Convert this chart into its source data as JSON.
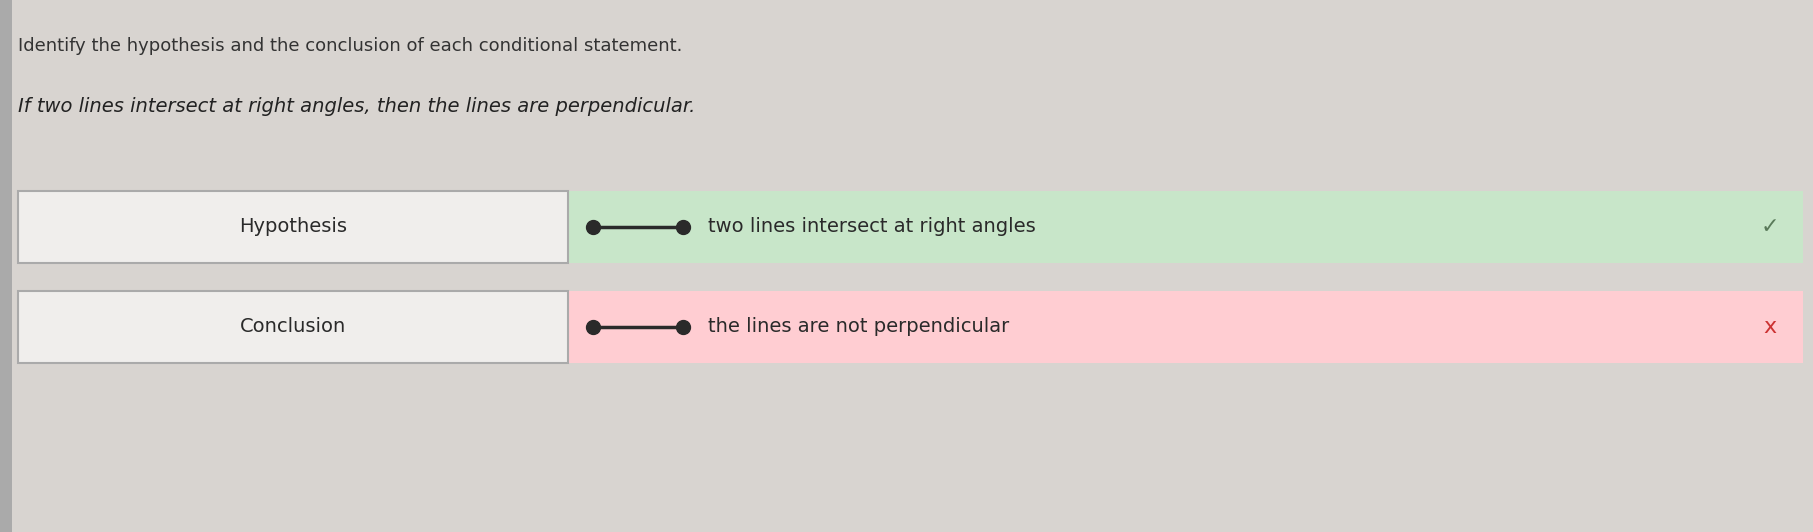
{
  "bg_color": "#d8d4d0",
  "instruction_text": "Identify the hypothesis and the conclusion of each conditional statement.",
  "statement_text": "If two lines intersect at right angles, then the lines are perpendicular.",
  "row1_label": "Hypothesis",
  "row2_label": "Conclusion",
  "row1_answer": "two lines intersect at right angles",
  "row2_answer": "the lines are not perpendicular",
  "row1_correct": true,
  "row2_correct": false,
  "correct_bg": "#c8e6c9",
  "incorrect_bg": "#ffcdd2",
  "correct_check_color": "#5a7a5a",
  "incorrect_x_color": "#cc3333",
  "box_bg": "#f0eeec",
  "box_border": "#aaaaaa",
  "dot_color": "#2a2a2a",
  "line_color": "#2a2a2a",
  "text_color": "#2a2a2a",
  "instruction_color": "#333333",
  "statement_color": "#222222"
}
